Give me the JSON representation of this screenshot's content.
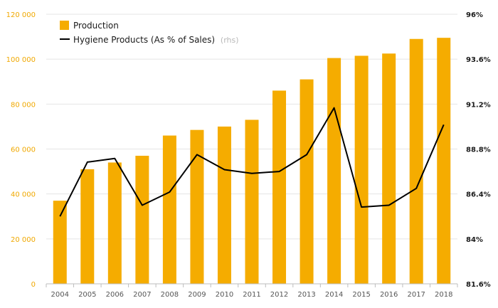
{
  "chart_data": {
    "type": "bar",
    "categories": [
      "2004",
      "2005",
      "2006",
      "2007",
      "2008",
      "2009",
      "2010",
      "2011",
      "2012",
      "2013",
      "2014",
      "2015",
      "2016",
      "2017",
      "2018"
    ],
    "series": [
      {
        "name": "Production",
        "type": "bar",
        "axis": "left",
        "color": "#f5ac00",
        "values": [
          37000,
          51000,
          54000,
          57000,
          66000,
          68500,
          70000,
          73000,
          86000,
          91000,
          100500,
          101500,
          102500,
          109000,
          109500
        ]
      },
      {
        "name": "Hygiene Products (As % of Sales)",
        "name_suffix": "(rhs)",
        "type": "line",
        "axis": "right",
        "color": "#000000",
        "values": [
          85.2,
          88.1,
          88.3,
          85.8,
          86.5,
          88.5,
          87.7,
          87.5,
          87.6,
          88.5,
          91.0,
          85.7,
          85.8,
          86.7,
          90.1
        ]
      }
    ],
    "ylim": [
      0,
      120000
    ],
    "yticks": [
      "0",
      "20 000",
      "40 000",
      "60 000",
      "80 000",
      "100 000",
      "120 000"
    ],
    "y2lim": [
      81.6,
      96
    ],
    "y2ticks": [
      "81.6%",
      "84%",
      "86.4%",
      "88.8%",
      "91.2%",
      "93.6%",
      "96%"
    ],
    "grid": true,
    "legend_position": "top-left"
  }
}
